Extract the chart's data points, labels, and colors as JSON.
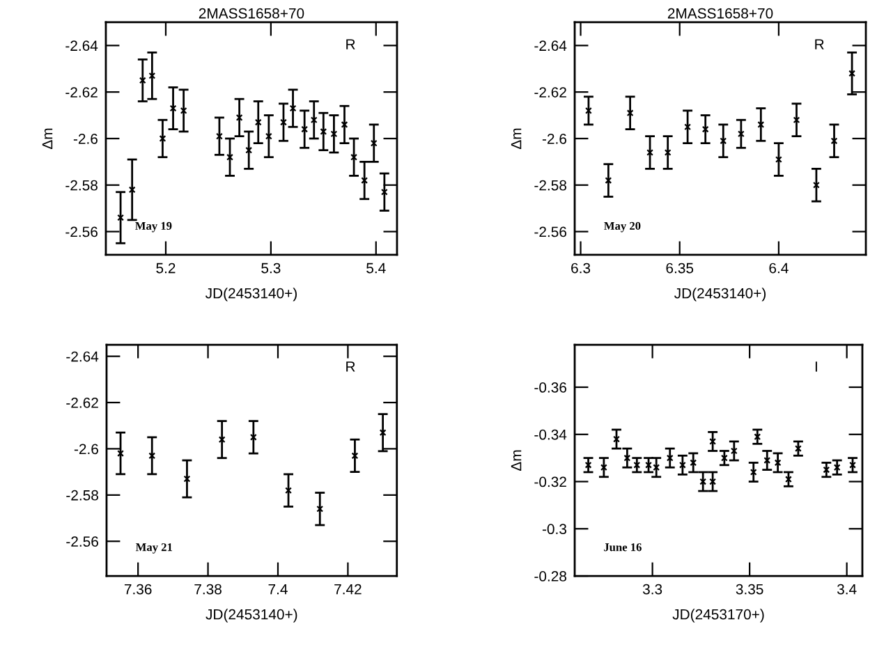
{
  "chart_data": [
    {
      "type": "scatter",
      "title": "2MASS1658+70",
      "xlabel": "JD(2453140+)",
      "ylabel": "Δm",
      "marker": "cross",
      "grid": false,
      "xlim": [
        5.143,
        5.42
      ],
      "xticks": [
        5.2,
        5.3,
        5.4
      ],
      "ylim": [
        -2.55,
        -2.65
      ],
      "yticks": [
        -2.64,
        -2.62,
        -2.6,
        -2.58,
        -2.56
      ],
      "annotations": [
        "R",
        "May 19"
      ],
      "series": [
        {
          "color": "#000000",
          "x": [
            5.157,
            5.168,
            5.178,
            5.187,
            5.197,
            5.207,
            5.217,
            5.251,
            5.261,
            5.27,
            5.279,
            5.288,
            5.298,
            5.312,
            5.321,
            5.332,
            5.341,
            5.35,
            5.36,
            5.37,
            5.379,
            5.389,
            5.398,
            5.408
          ],
          "values": [
            -2.566,
            -2.578,
            -2.625,
            -2.627,
            -2.6,
            -2.613,
            -2.612,
            -2.601,
            -2.592,
            -2.609,
            -2.595,
            -2.607,
            -2.601,
            -2.607,
            -2.613,
            -2.604,
            -2.608,
            -2.603,
            -2.602,
            -2.606,
            -2.592,
            -2.582,
            -2.598,
            -2.577
          ],
          "errors": [
            0.011,
            0.013,
            0.009,
            0.01,
            0.008,
            0.009,
            0.009,
            0.008,
            0.008,
            0.008,
            0.008,
            0.009,
            0.009,
            0.008,
            0.008,
            0.008,
            0.008,
            0.008,
            0.008,
            0.008,
            0.008,
            0.008,
            0.008,
            0.008
          ]
        }
      ]
    },
    {
      "type": "scatter",
      "title": "2MASS1658+70",
      "xlabel": "JD(2453140+)",
      "ylabel": "Δm",
      "marker": "cross",
      "grid": false,
      "xlim": [
        6.297,
        6.444
      ],
      "xticks": [
        6.3,
        6.35,
        6.4
      ],
      "ylim": [
        -2.55,
        -2.65
      ],
      "yticks": [
        -2.64,
        -2.62,
        -2.6,
        -2.58,
        -2.56
      ],
      "annotations": [
        "R",
        "May 20"
      ],
      "series": [
        {
          "color": "#000000",
          "x": [
            6.304,
            6.314,
            6.325,
            6.335,
            6.344,
            6.354,
            6.363,
            6.372,
            6.381,
            6.391,
            6.4,
            6.409,
            6.419,
            6.428,
            6.437
          ],
          "values": [
            -2.612,
            -2.582,
            -2.611,
            -2.594,
            -2.594,
            -2.605,
            -2.604,
            -2.599,
            -2.602,
            -2.606,
            -2.591,
            -2.608,
            -2.58,
            -2.599,
            -2.628
          ],
          "errors": [
            0.006,
            0.007,
            0.007,
            0.007,
            0.007,
            0.007,
            0.006,
            0.007,
            0.006,
            0.007,
            0.007,
            0.007,
            0.007,
            0.007,
            0.009
          ]
        }
      ]
    },
    {
      "type": "scatter",
      "xlabel": "JD(2453140+)",
      "marker": "cross",
      "grid": false,
      "xlim": [
        7.351,
        7.434
      ],
      "xticks": [
        7.36,
        7.38,
        7.4,
        7.42
      ],
      "ylim": [
        -2.545,
        -2.645
      ],
      "yticks": [
        -2.64,
        -2.62,
        -2.6,
        -2.58,
        -2.56
      ],
      "annotations": [
        "R",
        "May 21"
      ],
      "series": [
        {
          "color": "#000000",
          "x": [
            7.355,
            7.364,
            7.374,
            7.384,
            7.393,
            7.403,
            7.412,
            7.422,
            7.43
          ],
          "values": [
            -2.598,
            -2.597,
            -2.587,
            -2.604,
            -2.605,
            -2.582,
            -2.574,
            -2.597,
            -2.607
          ],
          "errors": [
            0.009,
            0.008,
            0.008,
            0.008,
            0.007,
            0.007,
            0.007,
            0.007,
            0.008
          ]
        }
      ]
    },
    {
      "type": "scatter",
      "xlabel": "JD(2453170+)",
      "ylabel": "Δm",
      "marker": "cross",
      "grid": false,
      "xlim": [
        3.26,
        3.408
      ],
      "xticks": [
        3.3,
        3.35,
        3.4
      ],
      "ylim": [
        -0.28,
        -0.378
      ],
      "yticks": [
        -0.36,
        -0.34,
        -0.32,
        -0.3,
        -0.28
      ],
      "annotations": [
        "I",
        "June 16"
      ],
      "series": [
        {
          "color": "#000000",
          "x": [
            3.267,
            3.275,
            3.2815,
            3.287,
            3.292,
            3.298,
            3.302,
            3.309,
            3.3155,
            3.321,
            3.326,
            3.331,
            3.331,
            3.337,
            3.342,
            3.352,
            3.354,
            3.359,
            3.3645,
            3.37,
            3.375,
            3.3895,
            3.395,
            3.403
          ],
          "values": [
            -0.327,
            -0.326,
            -0.338,
            -0.33,
            -0.327,
            -0.327,
            -0.326,
            -0.33,
            -0.327,
            -0.328,
            -0.32,
            -0.32,
            -0.337,
            -0.33,
            -0.333,
            -0.324,
            -0.339,
            -0.329,
            -0.328,
            -0.321,
            -0.334,
            -0.325,
            -0.326,
            -0.327
          ],
          "errors": [
            0.003,
            0.004,
            0.004,
            0.004,
            0.003,
            0.003,
            0.004,
            0.004,
            0.004,
            0.004,
            0.004,
            0.004,
            0.004,
            0.003,
            0.004,
            0.004,
            0.003,
            0.004,
            0.004,
            0.003,
            0.003,
            0.003,
            0.003,
            0.003
          ]
        }
      ]
    }
  ]
}
